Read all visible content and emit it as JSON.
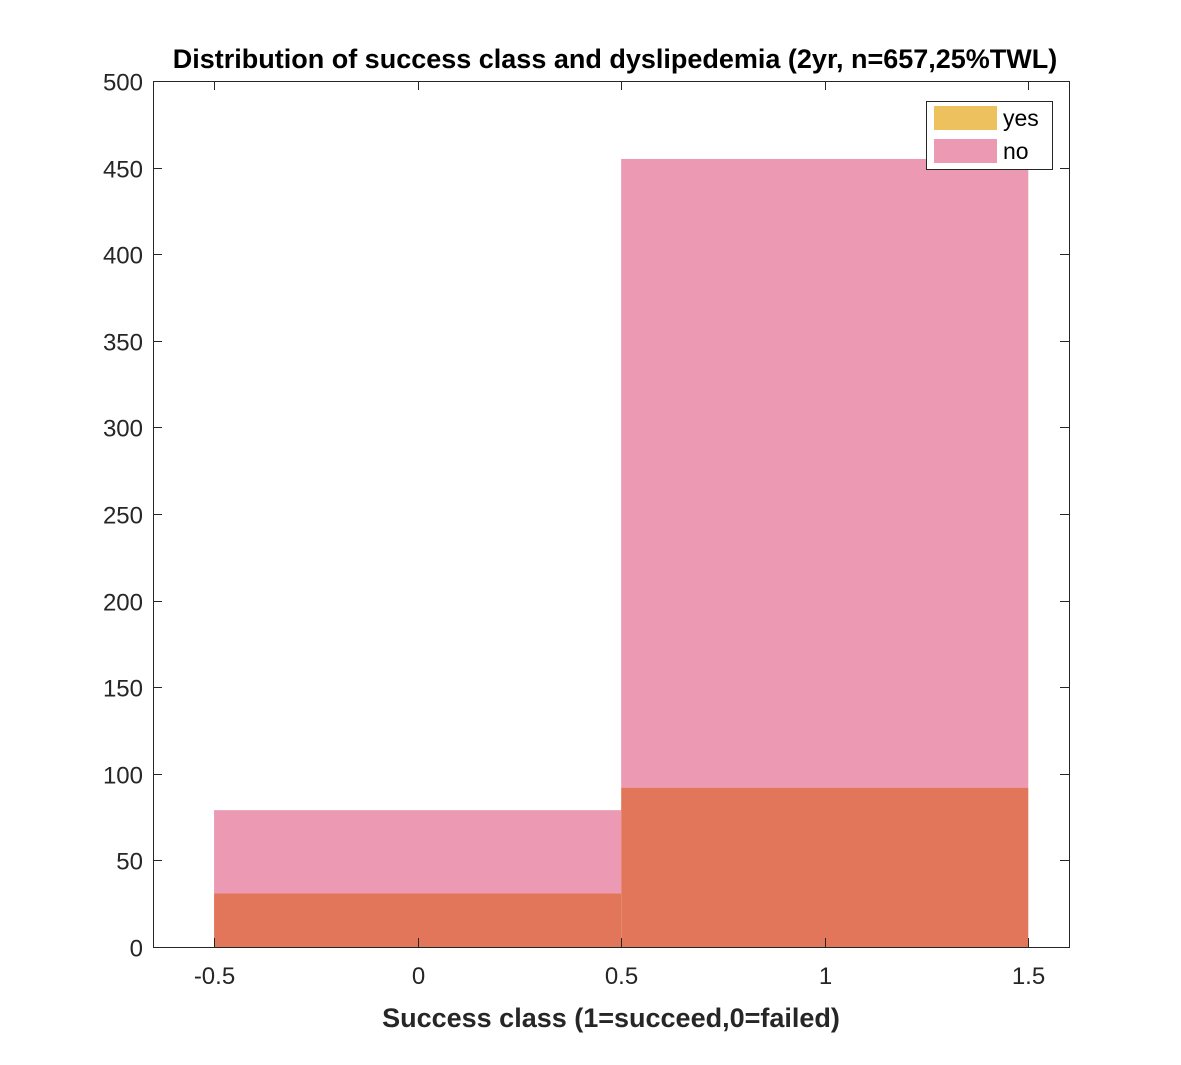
{
  "chart_data": {
    "type": "bar",
    "title": "Distribution of success class and dyslipedemia (2yr, n=657,25%TWL)",
    "xlabel": "Success class (1=succeed,0=failed)",
    "ylabel": "",
    "xlim": [
      -0.65,
      1.6
    ],
    "ylim": [
      0,
      500
    ],
    "xticks": [
      -0.5,
      0,
      0.5,
      1,
      1.5
    ],
    "xtick_labels": [
      "-0.5",
      "0",
      "0.5",
      "1",
      "1.5"
    ],
    "yticks": [
      0,
      50,
      100,
      150,
      200,
      250,
      300,
      350,
      400,
      450,
      500
    ],
    "ytick_labels": [
      "0",
      "50",
      "100",
      "150",
      "200",
      "250",
      "300",
      "350",
      "400",
      "450",
      "500"
    ],
    "bin_edges": [
      -0.5,
      0.5,
      1.5
    ],
    "categories": [
      "0",
      "1"
    ],
    "series": [
      {
        "name": "yes",
        "values": [
          31,
          92
        ],
        "color": "#EDC25E"
      },
      {
        "name": "no",
        "values": [
          79,
          455
        ],
        "color": "#EC99B4"
      }
    ],
    "overlap_color": "#E2765B",
    "legend_position": "top-right",
    "grid": false
  }
}
